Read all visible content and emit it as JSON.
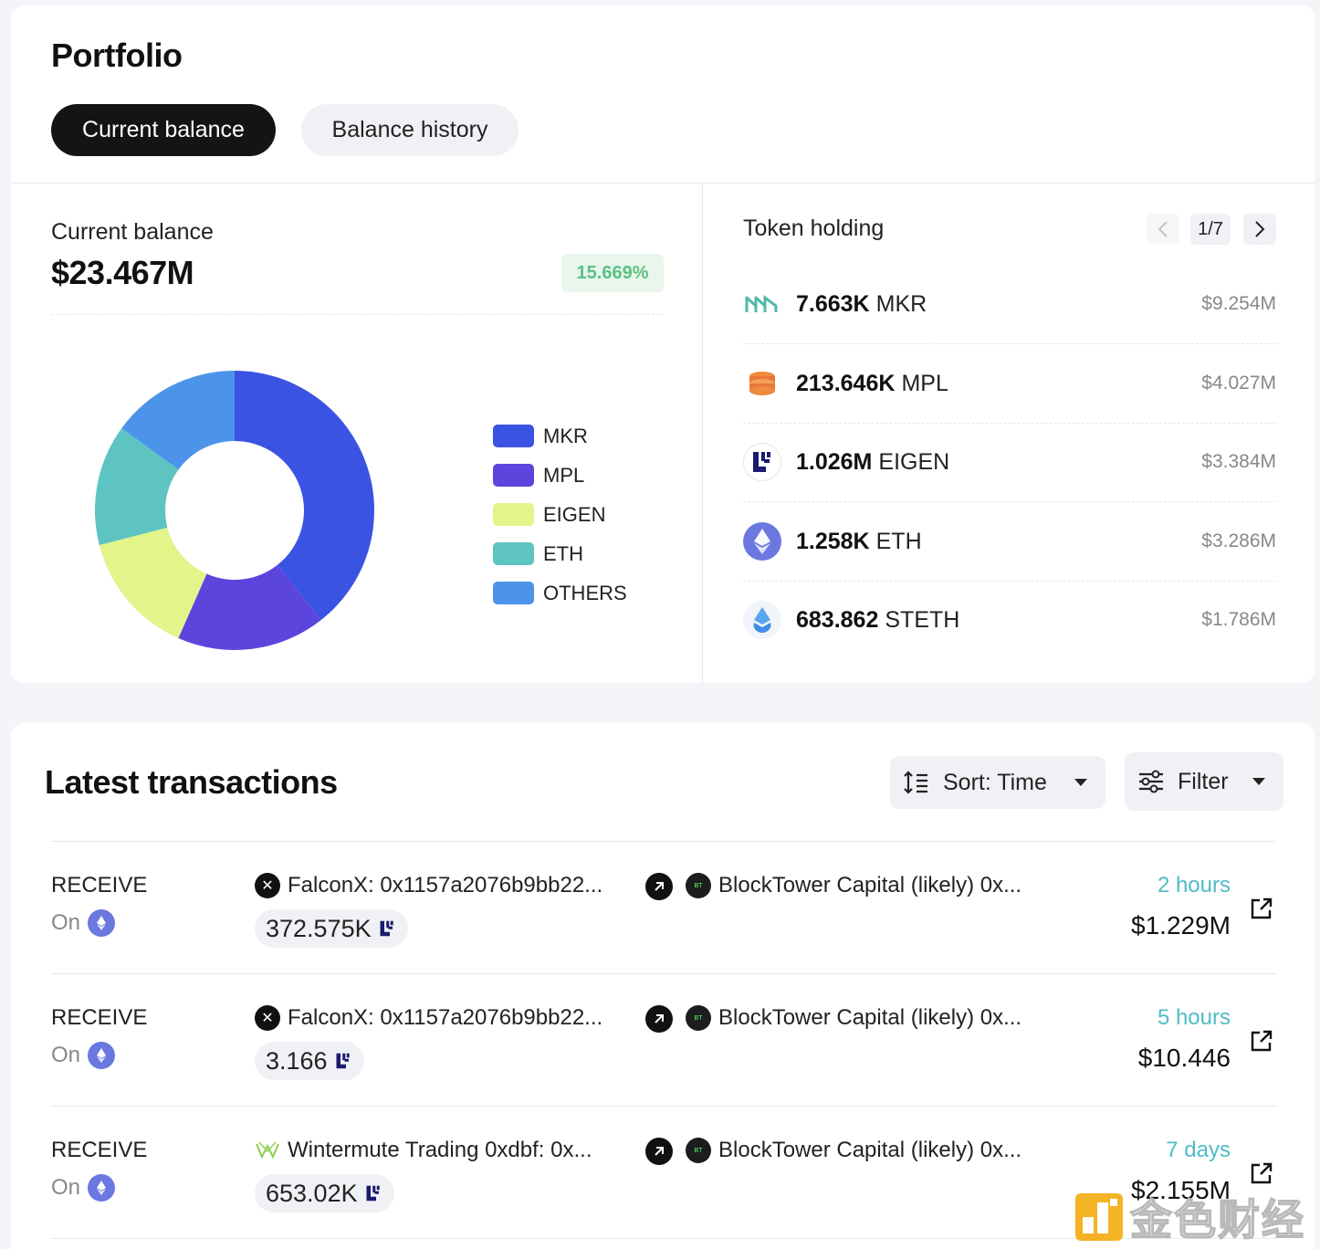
{
  "portfolio": {
    "title": "Portfolio",
    "tabs": [
      {
        "label": "Current balance",
        "active": true
      },
      {
        "label": "Balance history",
        "active": false
      }
    ],
    "current_balance_label": "Current balance",
    "current_balance_value": "$23.467M",
    "change_pct": "15.669%",
    "colors": {
      "positive_text": "#5cc184",
      "positive_bg": "#e8f6ec"
    }
  },
  "chart_data": {
    "type": "pie",
    "categories": [
      "MKR",
      "MPL",
      "EIGEN",
      "ETH",
      "OTHERS"
    ],
    "values": [
      39.4,
      17.2,
      14.4,
      14.0,
      15.0
    ],
    "colors": [
      "#3a53e2",
      "#5c45dd",
      "#e2f48a",
      "#5dc4c2",
      "#4c94ea"
    ],
    "legend_position": "right",
    "donut": true
  },
  "token_holding": {
    "label": "Token holding",
    "page": "1/7",
    "items": [
      {
        "amount": "7.663K",
        "symbol": "MKR",
        "usd": "$9.254M",
        "icon": "mkr-icon"
      },
      {
        "amount": "213.646K",
        "symbol": "MPL",
        "usd": "$4.027M",
        "icon": "mpl-icon"
      },
      {
        "amount": "1.026M",
        "symbol": "EIGEN",
        "usd": "$3.384M",
        "icon": "eigen-icon"
      },
      {
        "amount": "1.258K",
        "symbol": "ETH",
        "usd": "$3.286M",
        "icon": "eth-icon"
      },
      {
        "amount": "683.862",
        "symbol": "STETH",
        "usd": "$1.786M",
        "icon": "steth-icon"
      }
    ]
  },
  "transactions": {
    "title": "Latest transactions",
    "sort_label": "Sort: Time",
    "filter_label": "Filter",
    "rows": [
      {
        "type": "RECEIVE",
        "on": "On",
        "from": "FalconX: 0x1157a2076b9bb22...",
        "from_icon": "falconx-icon",
        "to": "BlockTower Capital (likely) 0x...",
        "amount": "372.575K",
        "time": "2 hours",
        "usd": "$1.229M"
      },
      {
        "type": "RECEIVE",
        "on": "On",
        "from": "FalconX: 0x1157a2076b9bb22...",
        "from_icon": "falconx-icon",
        "to": "BlockTower Capital (likely) 0x...",
        "amount": "3.166",
        "time": "5 hours",
        "usd": "$10.446"
      },
      {
        "type": "RECEIVE",
        "on": "On",
        "from": "Wintermute Trading 0xdbf: 0x...",
        "from_icon": "wintermute-icon",
        "to": "BlockTower Capital (likely) 0x...",
        "amount": "653.02K",
        "time": "7 days",
        "usd": "$2.155M"
      }
    ],
    "colors": {
      "time": "#4fbcc6"
    }
  },
  "watermark": {
    "text": "金色财经"
  }
}
